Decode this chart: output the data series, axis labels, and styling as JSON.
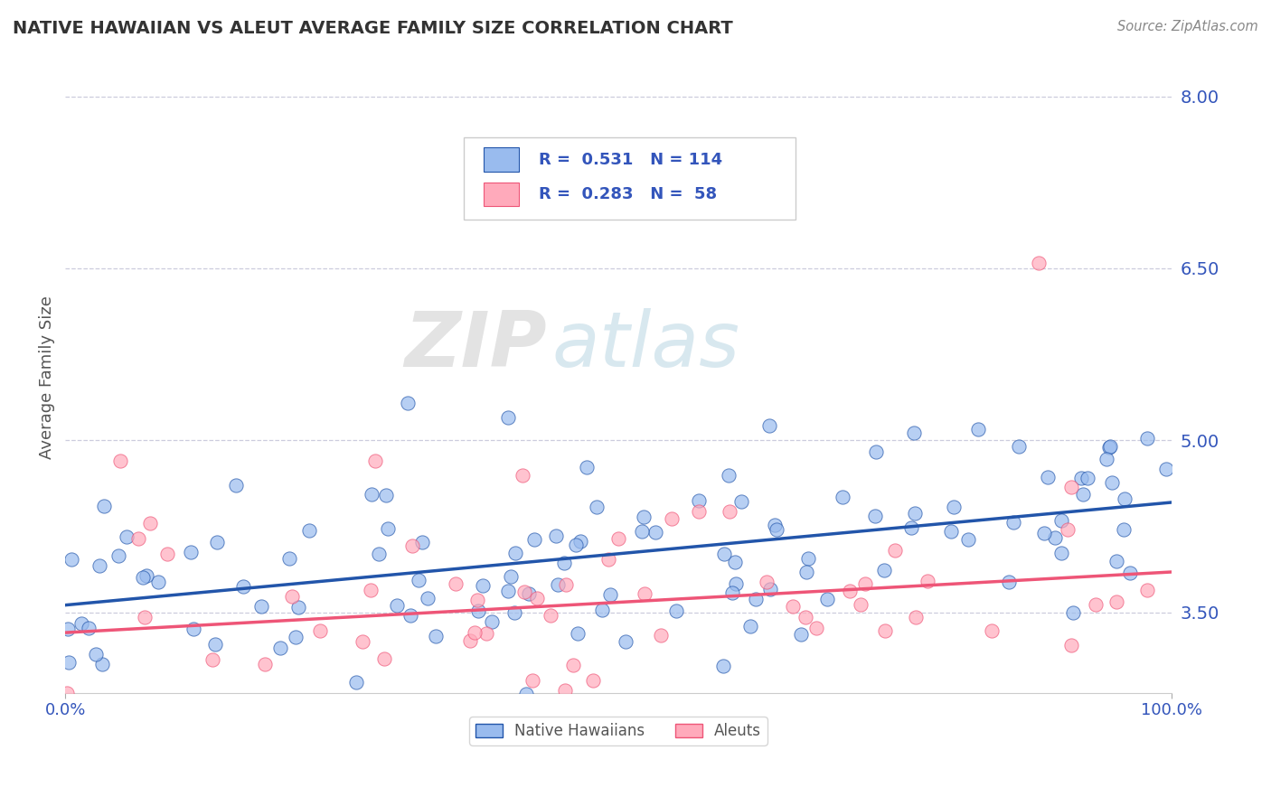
{
  "title": "NATIVE HAWAIIAN VS ALEUT AVERAGE FAMILY SIZE CORRELATION CHART",
  "source": "Source: ZipAtlas.com",
  "ylabel": "Average Family Size",
  "xlim": [
    0,
    100
  ],
  "ylim": [
    2.8,
    8.3
  ],
  "yticks": [
    3.5,
    5.0,
    6.5,
    8.0
  ],
  "blue_color": "#99BBEE",
  "pink_color": "#FFAABB",
  "line_blue": "#2255AA",
  "line_pink": "#EE5577",
  "text_color": "#3355BB",
  "r_blue": 0.531,
  "n_blue": 114,
  "r_pink": 0.283,
  "n_pink": 58,
  "watermark_zip": "ZIP",
  "watermark_atlas": "atlas",
  "grid_color": "#CCCCDD",
  "title_color": "#333333",
  "ylabel_color": "#555555",
  "source_color": "#888888",
  "legend_text_dark": "#333333"
}
